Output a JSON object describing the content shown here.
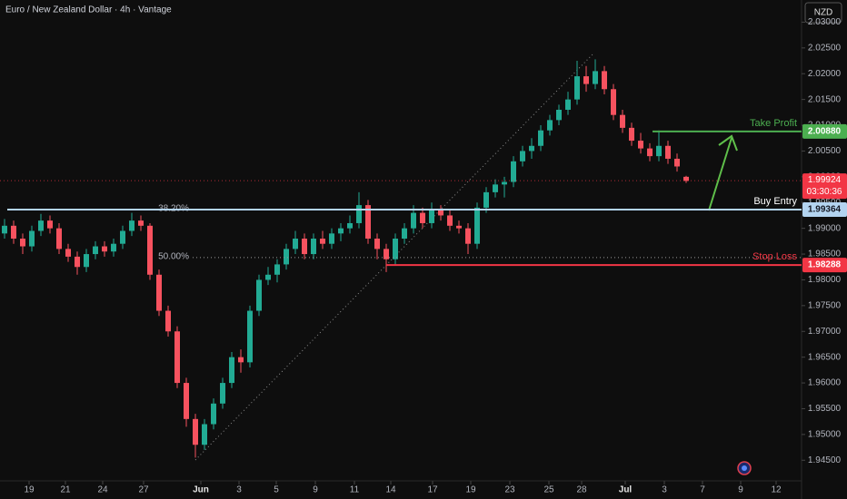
{
  "chart_data": {
    "type": "candlestick",
    "title": "Euro / New Zealand Dollar · 4h · Vantage",
    "currency_button": "NZD",
    "up_color": "#22ab94",
    "down_color": "#f7525f",
    "background": "#0e0e0e",
    "grid": false,
    "ylim": [
      1.941,
      2.0343
    ],
    "yticks": [
      {
        "value": 2.03,
        "label": "2.03000"
      },
      {
        "value": 2.025,
        "label": "2.02500"
      },
      {
        "value": 2.02,
        "label": "2.02000"
      },
      {
        "value": 2.015,
        "label": "2.01500"
      },
      {
        "value": 2.01,
        "label": "2.01000"
      },
      {
        "value": 2.005,
        "label": "2.00500"
      },
      {
        "value": 2.0,
        "label": "2.00000"
      },
      {
        "value": 1.995,
        "label": "1.99500"
      },
      {
        "value": 1.99,
        "label": "1.99000"
      },
      {
        "value": 1.985,
        "label": "1.98500"
      },
      {
        "value": 1.98,
        "label": "1.98000"
      },
      {
        "value": 1.975,
        "label": "1.97500"
      },
      {
        "value": 1.97,
        "label": "1.97000"
      },
      {
        "value": 1.965,
        "label": "1.96500"
      },
      {
        "value": 1.96,
        "label": "1.96000"
      },
      {
        "value": 1.955,
        "label": "1.95500"
      },
      {
        "value": 1.95,
        "label": "1.95000"
      },
      {
        "value": 1.945,
        "label": "1.94500"
      }
    ],
    "xlim": [
      -0.5,
      87.7
    ],
    "xticks": [
      {
        "value": 2.7,
        "label": "19"
      },
      {
        "value": 6.7,
        "label": "21"
      },
      {
        "value": 10.8,
        "label": "24"
      },
      {
        "value": 15.3,
        "label": "27"
      },
      {
        "value": 21.6,
        "label": "Jun"
      },
      {
        "value": 25.8,
        "label": "3"
      },
      {
        "value": 29.9,
        "label": "5"
      },
      {
        "value": 34.2,
        "label": "9"
      },
      {
        "value": 38.5,
        "label": "11"
      },
      {
        "value": 42.5,
        "label": "14"
      },
      {
        "value": 47.1,
        "label": "17"
      },
      {
        "value": 51.3,
        "label": "19"
      },
      {
        "value": 55.6,
        "label": "23"
      },
      {
        "value": 59.9,
        "label": "25"
      },
      {
        "value": 63.5,
        "label": "28"
      },
      {
        "value": 68.3,
        "label": "Jul"
      },
      {
        "value": 72.6,
        "label": "3"
      },
      {
        "value": 76.8,
        "label": "7"
      },
      {
        "value": 81,
        "label": "9"
      },
      {
        "value": 84.9,
        "label": "12"
      }
    ],
    "ohlc": [
      [
        1.989,
        1.9918,
        1.988,
        1.9905
      ],
      [
        1.9905,
        1.9915,
        1.987,
        1.988
      ],
      [
        1.988,
        1.989,
        1.985,
        1.9865
      ],
      [
        1.9865,
        1.9905,
        1.9855,
        1.9895
      ],
      [
        1.9895,
        1.9928,
        1.9885,
        1.9915
      ],
      [
        1.9915,
        1.9925,
        1.989,
        1.99
      ],
      [
        1.99,
        1.991,
        1.985,
        1.986
      ],
      [
        1.986,
        1.987,
        1.9835,
        1.9845
      ],
      [
        1.9845,
        1.9855,
        1.981,
        1.9825
      ],
      [
        1.9825,
        1.986,
        1.9815,
        1.985
      ],
      [
        1.985,
        1.9875,
        1.984,
        1.9865
      ],
      [
        1.9865,
        1.9875,
        1.9845,
        1.9855
      ],
      [
        1.9855,
        1.988,
        1.9845,
        1.987
      ],
      [
        1.987,
        1.9905,
        1.986,
        1.9895
      ],
      [
        1.9895,
        1.993,
        1.9885,
        1.9915
      ],
      [
        1.9915,
        1.9925,
        1.9895,
        1.9905
      ],
      [
        1.9905,
        1.991,
        1.98,
        1.981
      ],
      [
        1.981,
        1.982,
        1.973,
        1.974
      ],
      [
        1.974,
        1.975,
        1.969,
        1.97
      ],
      [
        1.97,
        1.971,
        1.959,
        1.96
      ],
      [
        1.96,
        1.961,
        1.9515,
        1.953
      ],
      [
        1.953,
        1.954,
        1.9455,
        1.948
      ],
      [
        1.948,
        1.953,
        1.947,
        1.952
      ],
      [
        1.952,
        1.957,
        1.951,
        1.956
      ],
      [
        1.956,
        1.961,
        1.955,
        1.96
      ],
      [
        1.96,
        1.966,
        1.959,
        1.965
      ],
      [
        1.965,
        1.9665,
        1.962,
        1.964
      ],
      [
        1.964,
        1.975,
        1.963,
        1.974
      ],
      [
        1.974,
        1.981,
        1.973,
        1.98
      ],
      [
        1.98,
        1.9825,
        1.979,
        1.981
      ],
      [
        1.981,
        1.984,
        1.9795,
        1.983
      ],
      [
        1.983,
        1.987,
        1.982,
        1.986
      ],
      [
        1.986,
        1.9895,
        1.985,
        1.988
      ],
      [
        1.988,
        1.989,
        1.984,
        1.985
      ],
      [
        1.985,
        1.989,
        1.984,
        1.988
      ],
      [
        1.988,
        1.9895,
        1.986,
        1.987
      ],
      [
        1.987,
        1.99,
        1.986,
        1.989
      ],
      [
        1.989,
        1.991,
        1.9875,
        1.99
      ],
      [
        1.99,
        1.9925,
        1.989,
        1.991
      ],
      [
        1.991,
        1.997,
        1.99,
        1.9945
      ],
      [
        1.9945,
        1.9955,
        1.987,
        1.988
      ],
      [
        1.988,
        1.989,
        1.984,
        1.986
      ],
      [
        1.986,
        1.987,
        1.9815,
        1.984
      ],
      [
        1.984,
        1.989,
        1.983,
        1.988
      ],
      [
        1.988,
        1.991,
        1.987,
        1.99
      ],
      [
        1.99,
        1.9945,
        1.989,
        1.993
      ],
      [
        1.993,
        1.994,
        1.99,
        1.991
      ],
      [
        1.991,
        1.995,
        1.99,
        1.9935
      ],
      [
        1.9935,
        1.9945,
        1.9915,
        1.9925
      ],
      [
        1.9925,
        1.9935,
        1.9895,
        1.9905
      ],
      [
        1.9905,
        1.9915,
        1.989,
        1.99
      ],
      [
        1.99,
        1.991,
        1.985,
        1.987
      ],
      [
        1.987,
        1.995,
        1.986,
        1.994
      ],
      [
        1.994,
        1.998,
        1.993,
        1.997
      ],
      [
        1.997,
        1.9995,
        1.996,
        1.9985
      ],
      [
        1.9985,
        2.0,
        1.996,
        1.999
      ],
      [
        1.999,
        2.004,
        1.998,
        2.003
      ],
      [
        2.003,
        2.006,
        2.002,
        2.005
      ],
      [
        2.005,
        2.0075,
        2.0035,
        2.006
      ],
      [
        2.006,
        2.01,
        2.005,
        2.009
      ],
      [
        2.009,
        2.012,
        2.008,
        2.011
      ],
      [
        2.011,
        2.014,
        2.01,
        2.013
      ],
      [
        2.013,
        2.0165,
        2.012,
        2.015
      ],
      [
        2.015,
        2.0225,
        2.014,
        2.0195
      ],
      [
        2.0195,
        2.0215,
        2.0165,
        2.018
      ],
      [
        2.018,
        2.0228,
        2.017,
        2.0205
      ],
      [
        2.0205,
        2.0215,
        2.016,
        2.017
      ],
      [
        2.017,
        2.018,
        2.011,
        2.012
      ],
      [
        2.012,
        2.013,
        2.0085,
        2.0095
      ],
      [
        2.0095,
        2.0105,
        2.006,
        2.007
      ],
      [
        2.007,
        2.0085,
        2.0045,
        2.0055
      ],
      [
        2.0055,
        2.0065,
        2.003,
        2.004
      ],
      [
        2.004,
        2.009,
        2.003,
        2.006
      ],
      [
        2.006,
        2.007,
        2.0025,
        2.0035
      ],
      [
        2.0035,
        2.0045,
        2.001,
        2.002
      ],
      [
        2.0,
        2.0002,
        1.9988,
        1.9992
      ]
    ],
    "levels": [
      {
        "name": "Take Profit",
        "value": 2.0088,
        "value_label": "2.00880",
        "color": "#4caf50",
        "text_color": "#ffffff"
      },
      {
        "name": "Buy Entry",
        "value": 1.99364,
        "value_label": "1.99364",
        "color": "#b3d4f0",
        "text_color": "#131722"
      },
      {
        "name": "Stop Loss",
        "value": 1.98288,
        "value_label": "1.98288",
        "color": "#f23645",
        "text_color": "#ffffff"
      }
    ],
    "fib_levels": [
      {
        "ratio": {
          "value": 38.2,
          "label": "38.20%"
        },
        "price": 1.99364
      },
      {
        "ratio": {
          "value": 50,
          "label": "50.00%"
        },
        "price": 1.98433
      }
    ],
    "last_price": {
      "value": 1.99924,
      "label": "1.99924",
      "countdown": "03:30:36",
      "color": "#f23645"
    }
  }
}
